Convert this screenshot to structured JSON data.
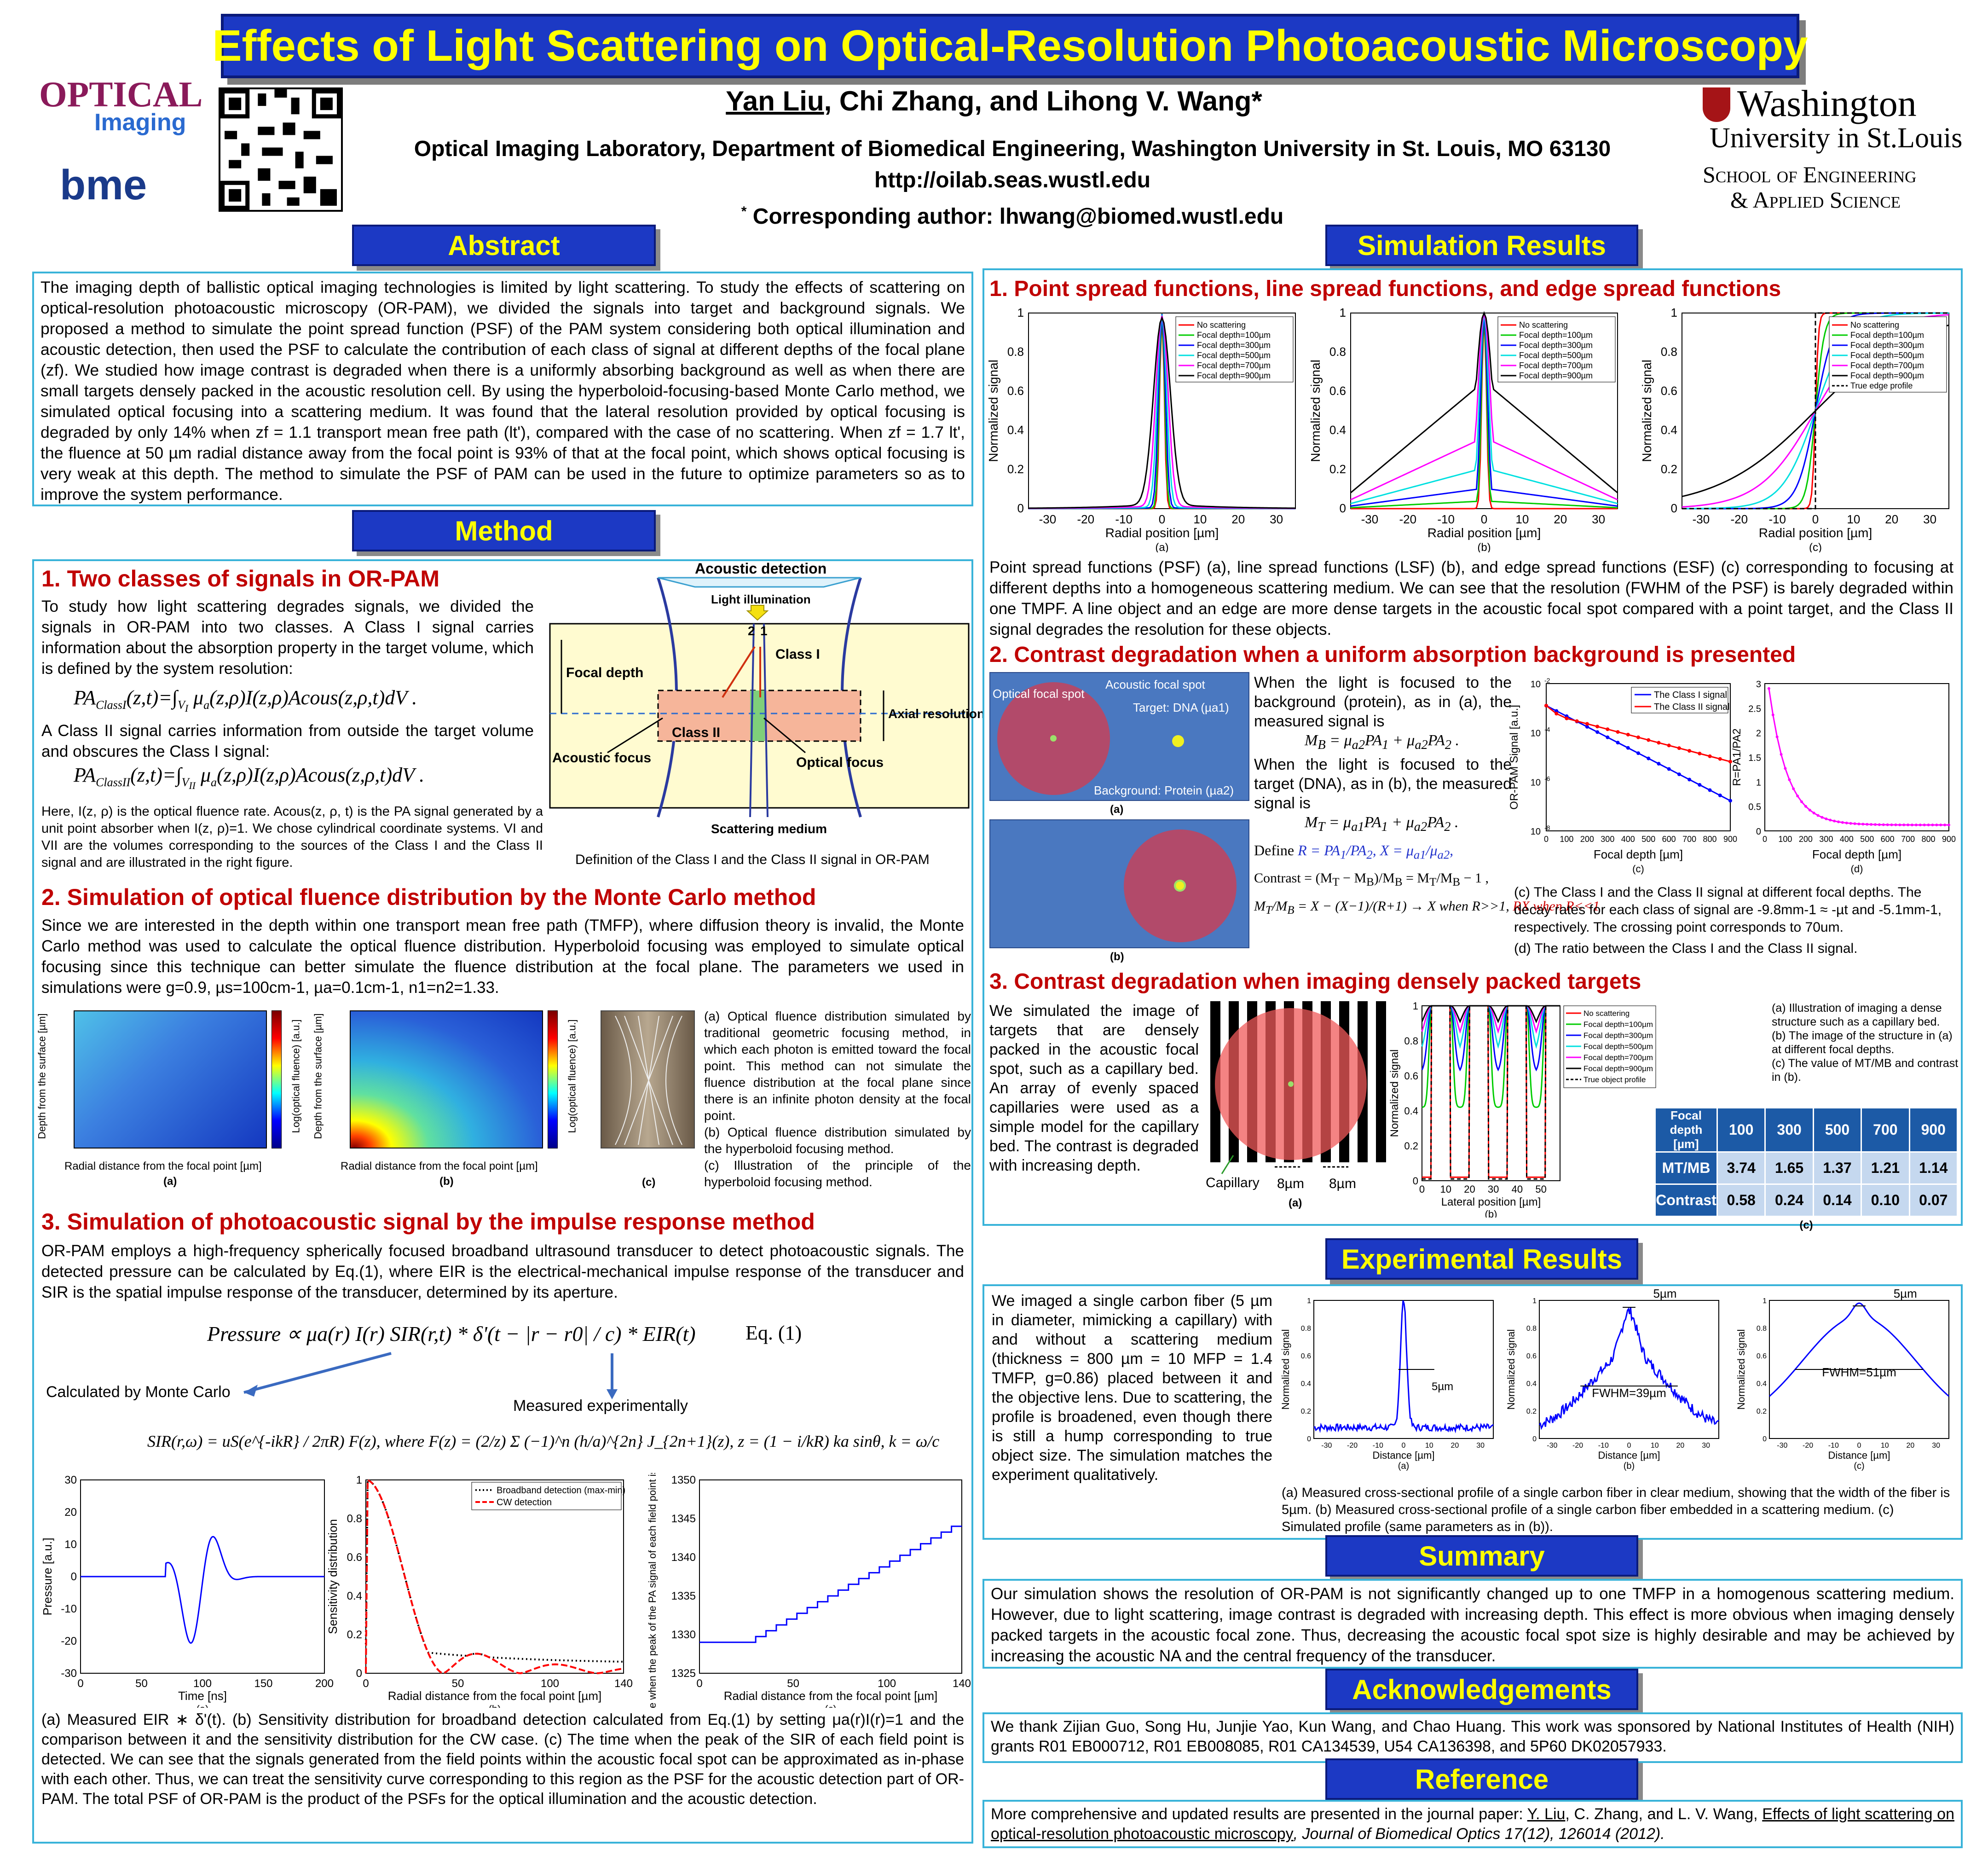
{
  "title": "Effects of Light Scattering on Optical-Resolution Photoacoustic Microscopy",
  "authors": {
    "first": "Yan Liu",
    "rest": ", Chi Zhang, and Lihong V. Wang*"
  },
  "affiliation": "Optical Imaging Laboratory, Department of Biomedical Engineering, Washington University in St. Louis, MO 63130",
  "url": "http://oilab.seas.wustl.edu",
  "corresponding": "Corresponding author: lhwang@biomed.wustl.edu",
  "corresponding_mark": "*",
  "logos": {
    "optical": "OPTICAL",
    "imaging": "Imaging",
    "bme": "bme",
    "wu1": "Washington",
    "wu2": "University in St.Louis",
    "wu3": "School of Engineering",
    "wu4": "& Applied Science"
  },
  "headers": {
    "abstract": "Abstract",
    "method": "Method",
    "sim": "Simulation Results",
    "exp": "Experimental Results",
    "summary": "Summary",
    "ack": "Acknowledgements",
    "ref": "Reference"
  },
  "abstract": "The imaging depth of ballistic optical imaging technologies is limited by light scattering. To study the effects of scattering on optical-resolution photoacoustic microscopy (OR-PAM), we divided the signals into target and background signals. We proposed a method to simulate the point spread function (PSF) of the PAM system considering both optical illumination and acoustic detection, then used the PSF to calculate the contribution of each class of signal at different depths of the focal plane (zf). We studied how image contrast is degraded when there is a uniformly absorbing background as well as when there are small targets densely packed in the acoustic resolution cell. By using the hyperboloid-focusing-based Monte Carlo method, we simulated optical focusing into a scattering medium. It was found that the lateral resolution provided by optical focusing is degraded by only 14% when zf = 1.1 transport mean free path (lt'), compared with the case of no scattering. When zf = 1.7 lt', the fluence at 50 µm radial distance away from the focal point is 93% of that at the focal point, which shows optical focusing is very weak at this depth. The method to simulate the PSF of PAM can be used in the future to optimize parameters so as to improve the system performance.",
  "method": {
    "h1": "1. Two classes of signals in OR-PAM",
    "p1": "To study how light scattering degrades signals, we divided the signals in OR-PAM into two classes. A Class I signal carries information about the absorption property in the target volume, which is defined by the system resolution:",
    "eq1": "PA_ClassI(z,t) = ∫V_I μa(z,ρ) I(z,ρ) Acous(z,ρ,t) dV .",
    "p2": "A Class II signal carries information from outside the target volume and obscures the Class I signal:",
    "eq2": "PA_ClassII(z,t) = ∫V_II μa(z,ρ) I(z,ρ) Acous(z,ρ,t) dV .",
    "p3": "Here, I(z, ρ) is the optical fluence rate. Acous(z, ρ, t) is the PA signal generated by a unit point absorber when I(z, ρ)=1. We chose cylindrical coordinate systems. VI and VII are the volumes corresponding to the sources of the Class I and the Class II signal and are illustrated in the right figure.",
    "diag": {
      "acoustic_detection": "Acoustic detection",
      "light": "Light illumination",
      "focal_depth": "Focal depth",
      "class1": "Class I",
      "class2": "Class II",
      "axial": "Axial resolution",
      "acoustic_focus": "Acoustic focus",
      "optical_focus": "Optical focus",
      "medium": "Scattering medium",
      "n2": "2",
      "n1": "1"
    },
    "diag_cap": "Definition of the Class I and the Class II signal in OR-PAM",
    "h2": "2. Simulation of optical fluence distribution by the Monte Carlo method",
    "p4": "Since we are interested in the depth within one transport mean free path (TMFP), where diffusion theory is invalid, the Monte Carlo method was used to calculate the optical fluence distribution. Hyperboloid focusing was employed to simulate optical focusing since this technique can better simulate the fluence distribution at the focal plane. The parameters we used in simulations were g=0.9, µs=100cm-1, µa=0.1cm-1, n1=n2=1.33.",
    "mc_caps": [
      "(a) Optical fluence distribution simulated by traditional geometric focusing method, in which each photon is emitted toward the focal point. This method can not simulate the fluence distribution at the focal plane since there is an infinite photon density at the focal point.",
      "(b) Optical fluence distribution simulated by the hyperboloid focusing method.",
      "(c) Illustration of the principle of the hyperboloid focusing method."
    ],
    "mc_axes": {
      "y": "Depth from the surface [µm]",
      "x": "Radial distance from the focal point [µm]",
      "cb": "Log(optical fluence) [a.u.]"
    },
    "h3": "3. Simulation of photoacoustic signal by the impulse response method",
    "p5": "OR-PAM employs a high-frequency spherically focused broadband ultrasound transducer to detect photoacoustic signals. The detected pressure can be calculated by Eq.(1), where EIR is the electrical-mechanical impulse response of the transducer and SIR is the spatial impulse response of the transducer, determined by its aperture.",
    "eq3": "Pressure ∝ μa(r) I(r) SIR(r,t) * δ'(t − |r − r0| / c) * EIR(t)",
    "eq3_label": "Eq. (1)",
    "calc_mc": "Calculated by Monte Carlo",
    "measured": "Measured experimentally",
    "eq4": "SIR(r,ω) = uS(e^{-ikR} / 2πR) F(z),  where F(z) = (2/z) Σ (−1)^n (h/a)^{2n} J_{2n+1}(z),  z = (1 − i/kR) ka sinθ,  k = ω/c",
    "final": "(a) Measured EIR ∗ δ'(t). (b) Sensitivity distribution for broadband detection calculated from Eq.(1) by setting μa(r)I(r)=1 and the comparison between it and the sensitivity distribution for the CW case. (c) The time when the peak of the SIR of each field point is detected. We can see that the signals generated from the field points within the acoustic focal spot can be approximated as in-phase with each other. Thus, we can treat the sensitivity curve corresponding to this region as the PSF for the acoustic detection part of OR-PAM. The total PSF of OR-PAM is the product of the PSFs for the optical illumination and the acoustic detection."
  },
  "sim": {
    "h1": "1. Point spread functions, line spread functions, and edge spread functions",
    "p1": "Point spread functions (PSF) (a), line spread functions (LSF) (b), and edge spread functions (ESF) (c) corresponding to focusing at different depths into a homogeneous scattering medium. We can see that the resolution (FWHM of the PSF) is barely degraded within one TMPF. A line object and an edge are more dense targets in the acoustic focal spot compared with a point target, and the Class II signal degrades the resolution for these objects.",
    "legend": [
      "No scattering",
      "Focal depth=100µm",
      "Focal depth=300µm",
      "Focal depth=500µm",
      "Focal depth=700µm",
      "Focal depth=900µm"
    ],
    "legend_edge": "True edge profile",
    "legend_obj": "True object profile",
    "xlabel": "Radial position [µm]",
    "ylabel": "Normalized signal",
    "h2": "2. Contrast degradation when a uniform absorption background is presented",
    "p2a": "When the light is focused to the background (protein), as in (a), the measured signal is",
    "p2b": "When the light is focused to the target (DNA), as in (b), the measured signal is",
    "spot": {
      "optical": "Optical focal spot",
      "acoustic": "Acoustic focal spot",
      "target": "Target: DNA (µa1)",
      "bg": "Background: Protein (µa2)"
    },
    "c2_caps": [
      "(c) The Class I and the Class II signal at different focal depths. The decay rates for each class of signal are -9.8mm-1 ≈ -µt and -5.1mm-1, respectively. The crossing point corresponds to 70um.",
      "(d) The ratio between the Class I and the Class II signal."
    ],
    "c2_legend": [
      "The Class I signal",
      "The Class II signal"
    ],
    "c2_axes": {
      "x": "Focal depth [µm]",
      "y1": "OR-PAM Signal [a.u.]",
      "y2": "R=PA1/PA2"
    },
    "h3": "3. Contrast degradation when imaging densely packed targets",
    "p3": "We simulated the image of targets that are densely packed in the acoustic focal spot, such as a capillary bed. An array of evenly spaced capillaries were used as a simple model for the capillary bed. The contrast is degraded with increasing depth.",
    "capillary": "Capillary",
    "w8": "8µm",
    "lateral": "Lateral position [µm]",
    "c3_caps": [
      "(a) Illustration of imaging a dense structure such as a capillary bed.",
      "(b) The image of the structure in (a) at different focal depths.",
      "(c) The value of MT/MB and contrast in (b)."
    ],
    "table": {
      "h0": "Focal depth [µm]",
      "depths": [
        "100",
        "300",
        "500",
        "700",
        "900"
      ],
      "r1": "MT/MB",
      "v1": [
        "3.74",
        "1.65",
        "1.37",
        "1.21",
        "1.14"
      ],
      "r2": "Contrast",
      "v2": [
        "0.58",
        "0.24",
        "0.14",
        "0.10",
        "0.07"
      ]
    }
  },
  "exp": {
    "p": "We imaged a single carbon fiber (5 µm in diameter, mimicking a capillary) with and without a scattering medium (thickness = 800 µm = 10 MFP = 1.4 TMFP, g=0.86) placed between it and the objective lens. Due to scattering, the profile is broadened, even though there is still a hump corresponding to true object size. The simulation matches the experiment qualitatively.",
    "cap": "(a) Measured cross-sectional profile of a single carbon fiber in clear medium, showing that the width of the fiber is 5µm. (b) Measured cross-sectional profile of a single carbon fiber embedded in a scattering medium. (c) Simulated profile (same parameters as in (b)).",
    "w5": "5µm",
    "fw39": "FWHM=39µm",
    "fw51": "FWHM=51µm",
    "xl": "Distance [µm]",
    "yl": "Normalized signal"
  },
  "summary": "Our simulation shows the resolution of OR-PAM is not significantly changed up to one TMFP in a homogenous scattering medium. However, due to light scattering, image contrast is degraded with increasing depth. This effect is more obvious when imaging densely packed targets in the acoustic focal zone. Thus, decreasing the acoustic focal spot size is highly desirable and may be achieved by increasing the acoustic NA and the central frequency of the transducer.",
  "ack": "We thank Zijian Guo, Song Hu, Junjie Yao, Kun Wang, and Chao Huang. This work was sponsored by National Institutes of Health (NIH) grants R01 EB000712, R01 EB008085, R01 CA134539, U54 CA136398, and 5P60 DK02057933.",
  "ref": {
    "pre": "More comprehensive and updated results are presented in the journal paper: ",
    "a1": "Y. Liu",
    "a2": ", C. Zhang, and L. V. Wang, ",
    "title": "Effects of light scattering on optical-resolution photoacoustic microscopy",
    "journal": ", Journal of Biomedical Optics 17(12), 126014 (2012)."
  },
  "fig_labels": {
    "a": "(a)",
    "b": "(b)",
    "c": "(c)",
    "d": "(d)"
  },
  "axes": {
    "psf_x": [
      "-30",
      "-20",
      "-10",
      "0",
      "10",
      "20",
      "30"
    ],
    "y01": [
      "0",
      "0.2",
      "0.4",
      "0.6",
      "0.8",
      "1"
    ],
    "time": "Time [ns]",
    "pressure": "Pressure [a.u.]",
    "sens": "Sensitivity distribution",
    "radial": "Radial distance from the focal point [µm]",
    "peak_t": "The time when the peak of the PA signal of each field point is detected[ns]",
    "bb": "Broadband detection (max-min)",
    "cw": "CW detection"
  }
}
